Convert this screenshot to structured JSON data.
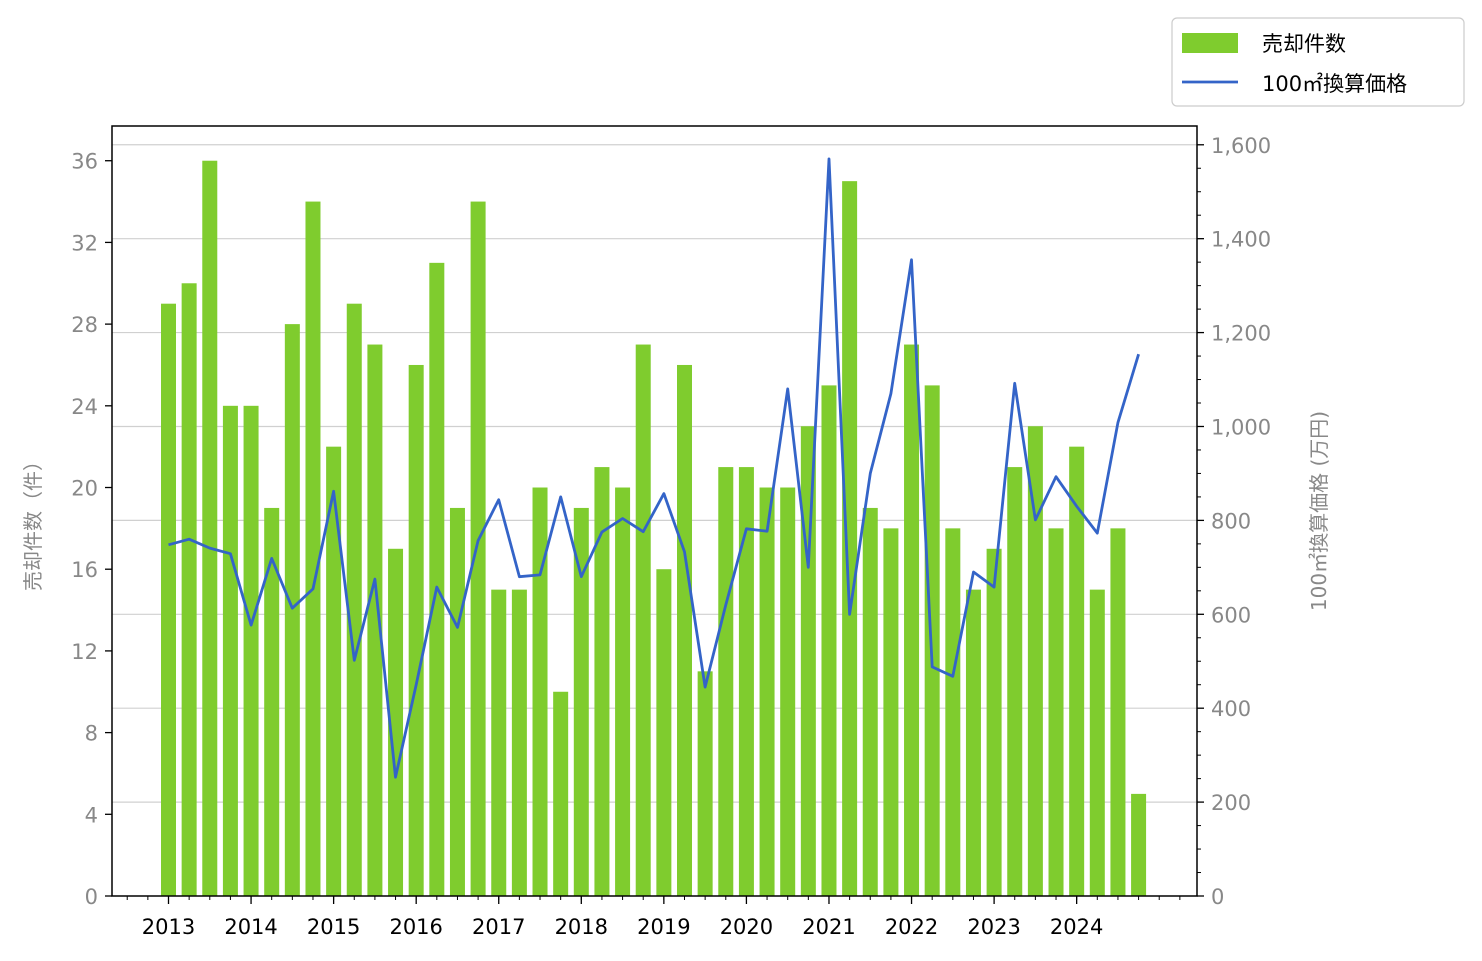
{
  "chart_data": {
    "type": "bar+line",
    "x_tick_labels": [
      "2013",
      "2014",
      "2015",
      "2016",
      "2017",
      "2018",
      "2019",
      "2020",
      "2021",
      "2022",
      "2023",
      "2024"
    ],
    "ylabel_left": "売却件数（件）",
    "ylabel_right": "100㎡換算価格 (万円)",
    "ylim_left": [
      0,
      37.7
    ],
    "yticks_left": [
      "0",
      "4",
      "8",
      "12",
      "16",
      "20",
      "24",
      "28",
      "32",
      "36"
    ],
    "ylim_right": [
      0,
      1640
    ],
    "yticks_right": [
      "0",
      "200",
      "400",
      "600",
      "800",
      "1,000",
      "1,200",
      "1,400",
      "1,600"
    ],
    "grid": "horizontal, right axis",
    "legend_position": "top-right, outside plot",
    "series": [
      {
        "name": "売却件数",
        "type": "bar",
        "axis": "left",
        "color": "#7fcc2e",
        "values": [
          29,
          30,
          36,
          24,
          24,
          19,
          28,
          34,
          22,
          29,
          27,
          17,
          26,
          31,
          19,
          34,
          15,
          15,
          20,
          10,
          19,
          21,
          20,
          27,
          16,
          26,
          11,
          21,
          21,
          20,
          20,
          23,
          25,
          35,
          19,
          18,
          27,
          25,
          18,
          15,
          17,
          21,
          23,
          18,
          22,
          15,
          18,
          5
        ]
      },
      {
        "name": "100㎡換算価格",
        "type": "line",
        "axis": "right",
        "color": "#3464c8",
        "values": [
          748,
          760,
          741,
          729,
          577,
          719,
          613,
          654,
          862,
          502,
          675,
          253,
          450,
          658,
          572,
          757,
          844,
          680,
          684,
          850,
          680,
          775,
          804,
          776,
          857,
          733,
          445,
          620,
          782,
          777,
          1080,
          700,
          1570,
          600,
          900,
          1070,
          1355,
          488,
          468,
          690,
          658,
          1092,
          801,
          893,
          830,
          773,
          1008,
          1154
        ]
      }
    ]
  },
  "colors": {
    "bar": "#7fcc2e",
    "line": "#3464c8",
    "grid": "#d0d0d0",
    "tick_text": "#888888",
    "x_tick_text": "#000000"
  }
}
